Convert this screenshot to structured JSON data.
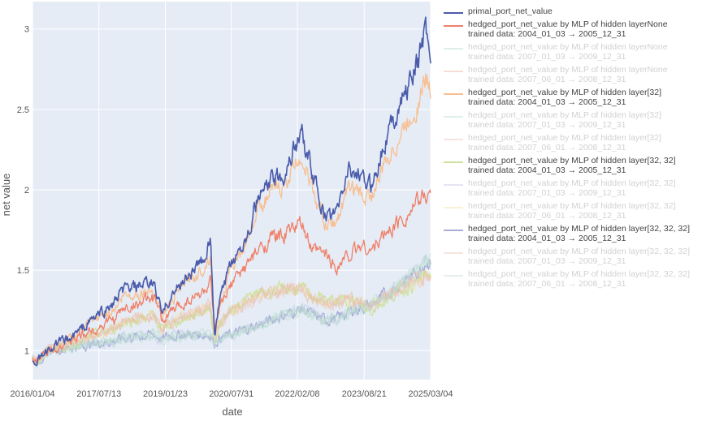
{
  "chart_data": {
    "type": "line",
    "title": "",
    "xlabel": "date",
    "ylabel": "net value",
    "x_tick_labels": [
      "2016/01/04",
      "2017/07/13",
      "2019/01/23",
      "2020/07/31",
      "2022/02/08",
      "2023/08/21",
      "2025/03/04"
    ],
    "x_tick_years": [
      2016.0,
      2017.53,
      2019.06,
      2020.58,
      2022.1,
      2023.64,
      2025.17
    ],
    "x_range_years": [
      2016.0,
      2025.17
    ],
    "y_ticks": [
      1,
      1.5,
      2,
      2.5,
      3
    ],
    "y_tick_labels": [
      "1",
      "1.5",
      "2",
      "2.5",
      "3"
    ],
    "ylim": [
      0.82,
      3.17
    ],
    "grid": true,
    "legend_position": "right",
    "keypoints_x": [
      2016.0,
      2016.1,
      2016.4,
      2016.9,
      2017.3,
      2017.9,
      2018.1,
      2018.5,
      2018.8,
      2019.0,
      2019.1,
      2019.5,
      2019.9,
      2020.1,
      2020.2,
      2020.3,
      2020.6,
      2020.9,
      2021.2,
      2021.5,
      2021.8,
      2022.0,
      2022.2,
      2022.45,
      2022.75,
      2023.0,
      2023.3,
      2023.6,
      2023.8,
      2024.1,
      2024.5,
      2024.9,
      2025.05,
      2025.17
    ],
    "series": [
      {
        "name": "primal_port_net_value",
        "color": "#4a5bab",
        "dim": false,
        "label_lines": [
          "primal_port_net_value"
        ],
        "values": [
          0.95,
          0.93,
          1.02,
          1.08,
          1.18,
          1.3,
          1.38,
          1.4,
          1.42,
          1.22,
          1.3,
          1.45,
          1.55,
          1.68,
          1.07,
          1.3,
          1.55,
          1.7,
          1.95,
          2.05,
          2.1,
          2.25,
          2.35,
          2.1,
          1.82,
          1.85,
          2.15,
          2.05,
          2.02,
          2.3,
          2.55,
          2.8,
          3.02,
          2.85
        ]
      },
      {
        "name": "hedged 2004-2005 None",
        "color": "#ef7f67",
        "dim": false,
        "label_lines": [
          "hedged_port_net_value by MLP of hidden layerNone",
          "trained data: 2004_01_03 → 2005_12_31"
        ],
        "values": [
          0.95,
          0.93,
          1.01,
          1.06,
          1.12,
          1.2,
          1.26,
          1.3,
          1.32,
          1.18,
          1.22,
          1.3,
          1.36,
          1.42,
          1.1,
          1.25,
          1.42,
          1.52,
          1.62,
          1.7,
          1.72,
          1.76,
          1.78,
          1.62,
          1.6,
          1.52,
          1.6,
          1.66,
          1.62,
          1.72,
          1.82,
          1.92,
          1.98,
          1.96
        ]
      },
      {
        "name": "hedged 2007-2009 None",
        "color": "#b6dccb",
        "dim": true,
        "label_lines": [
          "hedged_port_net_value by MLP of hidden layerNone",
          "trained data: 2007_01_03 → 2009_12_31"
        ],
        "values": [
          0.95,
          0.93,
          1.0,
          1.02,
          1.04,
          1.06,
          1.08,
          1.09,
          1.1,
          1.07,
          1.09,
          1.1,
          1.1,
          1.1,
          1.04,
          1.08,
          1.1,
          1.13,
          1.16,
          1.19,
          1.22,
          1.24,
          1.26,
          1.22,
          1.19,
          1.2,
          1.24,
          1.27,
          1.28,
          1.34,
          1.42,
          1.5,
          1.56,
          1.55
        ]
      },
      {
        "name": "hedged 2007-2008 None",
        "color": "#e9b9a3",
        "dim": true,
        "label_lines": [
          "hedged_port_net_value by MLP of hidden layerNone",
          "trained data: 2007_06_01 → 2008_12_31"
        ],
        "values": [
          0.95,
          0.93,
          1.01,
          1.05,
          1.08,
          1.14,
          1.18,
          1.2,
          1.22,
          1.12,
          1.16,
          1.22,
          1.25,
          1.28,
          1.05,
          1.16,
          1.25,
          1.3,
          1.34,
          1.36,
          1.38,
          1.38,
          1.39,
          1.32,
          1.3,
          1.3,
          1.32,
          1.3,
          1.27,
          1.33,
          1.39,
          1.44,
          1.47,
          1.46
        ]
      },
      {
        "name": "hedged 2004-2005 [32]",
        "color": "#f7bf92",
        "dim": false,
        "label_lines": [
          "hedged_port_net_value by MLP of hidden layer[32]",
          "trained data: 2004_01_03 → 2005_12_31"
        ],
        "values": [
          0.95,
          0.93,
          1.02,
          1.07,
          1.16,
          1.27,
          1.34,
          1.36,
          1.38,
          1.2,
          1.27,
          1.42,
          1.5,
          1.6,
          1.07,
          1.28,
          1.52,
          1.66,
          1.9,
          1.98,
          2.02,
          2.14,
          2.22,
          2.0,
          1.78,
          1.8,
          2.02,
          1.96,
          1.95,
          2.15,
          2.35,
          2.55,
          2.7,
          2.62
        ]
      },
      {
        "name": "hedged 2007-2009 [32]",
        "color": "#bcdcd1",
        "dim": true,
        "label_lines": [
          "hedged_port_net_value by MLP of hidden layer[32]",
          "trained data: 2007_01_03 → 2009_12_31"
        ],
        "values": [
          0.95,
          0.93,
          1.0,
          1.02,
          1.04,
          1.06,
          1.08,
          1.09,
          1.1,
          1.07,
          1.09,
          1.1,
          1.1,
          1.1,
          1.04,
          1.08,
          1.1,
          1.13,
          1.16,
          1.19,
          1.22,
          1.24,
          1.26,
          1.22,
          1.19,
          1.2,
          1.24,
          1.27,
          1.28,
          1.34,
          1.42,
          1.5,
          1.56,
          1.55
        ]
      },
      {
        "name": "hedged 2007-2008 [32]",
        "color": "#ecc4b9",
        "dim": true,
        "label_lines": [
          "hedged_port_net_value by MLP of hidden layer[32]",
          "trained data: 2007_06_01 → 2008_12_31"
        ],
        "values": [
          0.95,
          0.93,
          1.01,
          1.05,
          1.08,
          1.14,
          1.18,
          1.2,
          1.22,
          1.12,
          1.16,
          1.22,
          1.25,
          1.28,
          1.05,
          1.16,
          1.25,
          1.3,
          1.34,
          1.36,
          1.38,
          1.38,
          1.39,
          1.32,
          1.3,
          1.3,
          1.32,
          1.3,
          1.27,
          1.33,
          1.39,
          1.44,
          1.47,
          1.46
        ]
      },
      {
        "name": "hedged 2004-2005 [32, 32]",
        "color": "#cfe3a0",
        "dim": false,
        "label_lines": [
          "hedged_port_net_value by MLP of hidden layer[32, 32]",
          "trained data: 2004_01_03 → 2005_12_31"
        ],
        "values": [
          0.95,
          0.93,
          1.01,
          1.04,
          1.08,
          1.14,
          1.18,
          1.2,
          1.22,
          1.12,
          1.15,
          1.2,
          1.24,
          1.27,
          1.04,
          1.16,
          1.26,
          1.32,
          1.35,
          1.37,
          1.38,
          1.38,
          1.38,
          1.34,
          1.32,
          1.3,
          1.32,
          1.28,
          1.25,
          1.31,
          1.37,
          1.43,
          1.48,
          1.47
        ]
      },
      {
        "name": "hedged 2007-2009 [32, 32]",
        "color": "#c6c9e8",
        "dim": true,
        "label_lines": [
          "hedged_port_net_value by MLP of hidden layer[32, 32]",
          "trained data: 2007_01_03 → 2009_12_31"
        ],
        "values": [
          0.95,
          0.93,
          1.0,
          1.02,
          1.04,
          1.06,
          1.08,
          1.09,
          1.1,
          1.07,
          1.09,
          1.1,
          1.1,
          1.1,
          1.04,
          1.08,
          1.1,
          1.13,
          1.16,
          1.19,
          1.22,
          1.24,
          1.26,
          1.22,
          1.19,
          1.2,
          1.24,
          1.27,
          1.28,
          1.34,
          1.42,
          1.5,
          1.56,
          1.55
        ]
      },
      {
        "name": "hedged 2007-2008 [32, 32]",
        "color": "#f3e3a2",
        "dim": true,
        "label_lines": [
          "hedged_port_net_value by MLP of hidden layer[32, 32]",
          "trained data: 2007_06_01 → 2008_12_31"
        ],
        "values": [
          0.95,
          0.93,
          1.01,
          1.05,
          1.08,
          1.14,
          1.18,
          1.2,
          1.22,
          1.12,
          1.16,
          1.22,
          1.25,
          1.28,
          1.05,
          1.16,
          1.25,
          1.3,
          1.34,
          1.36,
          1.38,
          1.38,
          1.39,
          1.32,
          1.3,
          1.3,
          1.32,
          1.3,
          1.27,
          1.33,
          1.39,
          1.44,
          1.47,
          1.46
        ]
      },
      {
        "name": "hedged 2004-2005 [32, 32, 32]",
        "color": "#a9acd9",
        "dim": false,
        "label_lines": [
          "hedged_port_net_value by MLP of hidden layer[32, 32, 32]",
          "trained data: 2004_01_03 → 2005_12_31"
        ],
        "values": [
          0.95,
          0.93,
          1.0,
          1.02,
          1.04,
          1.06,
          1.08,
          1.09,
          1.1,
          1.07,
          1.09,
          1.1,
          1.1,
          1.1,
          1.04,
          1.08,
          1.1,
          1.13,
          1.16,
          1.19,
          1.22,
          1.24,
          1.26,
          1.22,
          1.19,
          1.2,
          1.24,
          1.27,
          1.28,
          1.34,
          1.42,
          1.5,
          1.56,
          1.55
        ]
      },
      {
        "name": "hedged 2007-2009 [32, 32, 32]",
        "color": "#f0c5b7",
        "dim": true,
        "label_lines": [
          "hedged_port_net_value by MLP of hidden layer[32, 32, 32]",
          "trained data: 2007_01_03 → 2009_12_31"
        ],
        "values": [
          0.95,
          0.93,
          1.01,
          1.05,
          1.08,
          1.14,
          1.18,
          1.2,
          1.22,
          1.12,
          1.16,
          1.22,
          1.25,
          1.28,
          1.05,
          1.16,
          1.25,
          1.3,
          1.34,
          1.36,
          1.38,
          1.38,
          1.39,
          1.32,
          1.3,
          1.3,
          1.32,
          1.3,
          1.27,
          1.33,
          1.39,
          1.44,
          1.47,
          1.46
        ]
      },
      {
        "name": "hedged 2007-2008 [32, 32, 32]",
        "color": "#bfe3d3",
        "dim": true,
        "label_lines": [
          "hedged_port_net_value by MLP of hidden layer[32, 32, 32]",
          "trained data: 2007_06_01 → 2008_12_31"
        ],
        "values": [
          0.95,
          0.93,
          1.0,
          1.02,
          1.04,
          1.06,
          1.08,
          1.09,
          1.1,
          1.07,
          1.09,
          1.1,
          1.1,
          1.1,
          1.04,
          1.08,
          1.1,
          1.13,
          1.16,
          1.19,
          1.22,
          1.24,
          1.26,
          1.22,
          1.19,
          1.2,
          1.24,
          1.27,
          1.28,
          1.34,
          1.42,
          1.5,
          1.56,
          1.55
        ]
      }
    ]
  }
}
